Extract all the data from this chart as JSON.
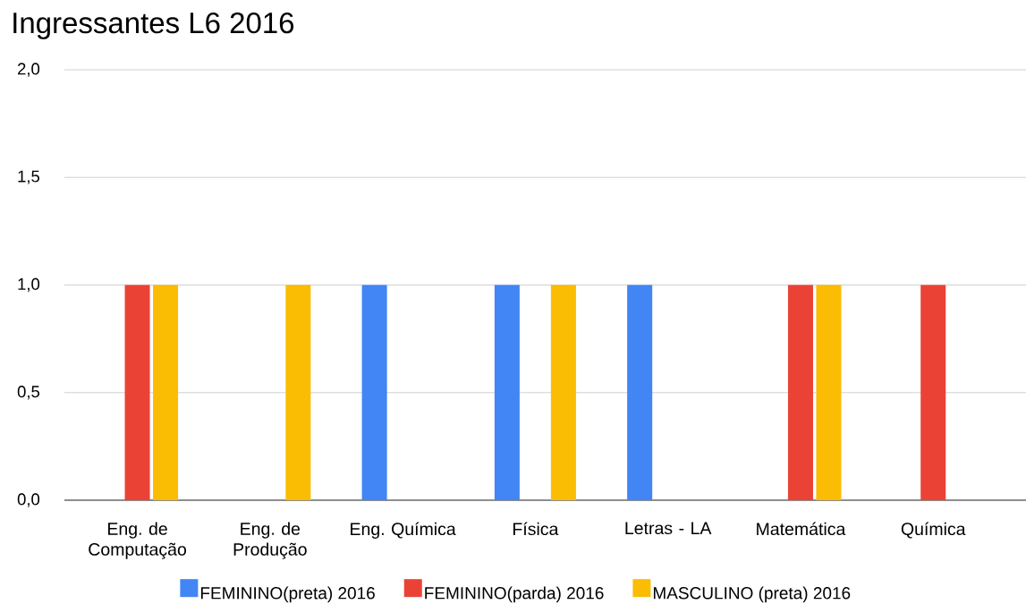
{
  "chart_data": {
    "type": "bar",
    "title": "Ingressantes L6 2016",
    "categories": [
      "Eng. de Computação",
      "Eng. de Produção",
      "Eng. Química",
      "Física",
      "Letras - LA",
      "Matemática",
      "Química"
    ],
    "series": [
      {
        "name": "FEMININO(preta) 2016",
        "color": "#4285f4",
        "values": [
          null,
          null,
          1,
          1,
          1,
          null,
          null
        ]
      },
      {
        "name": "FEMININO(parda) 2016",
        "color": "#ea4335",
        "values": [
          1,
          null,
          null,
          null,
          null,
          1,
          1
        ]
      },
      {
        "name": "MASCULINO (preta) 2016",
        "color": "#fbbc04",
        "values": [
          1,
          1,
          null,
          1,
          null,
          1,
          null
        ]
      }
    ],
    "ylim": [
      0,
      2
    ],
    "yticks": [
      {
        "value": 0,
        "label": "0,0"
      },
      {
        "value": 0.5,
        "label": "0,5"
      },
      {
        "value": 1,
        "label": "1,0"
      },
      {
        "value": 1.5,
        "label": "1,5"
      },
      {
        "value": 2,
        "label": "2,0"
      }
    ],
    "grid": "y",
    "legend": "bottom"
  }
}
